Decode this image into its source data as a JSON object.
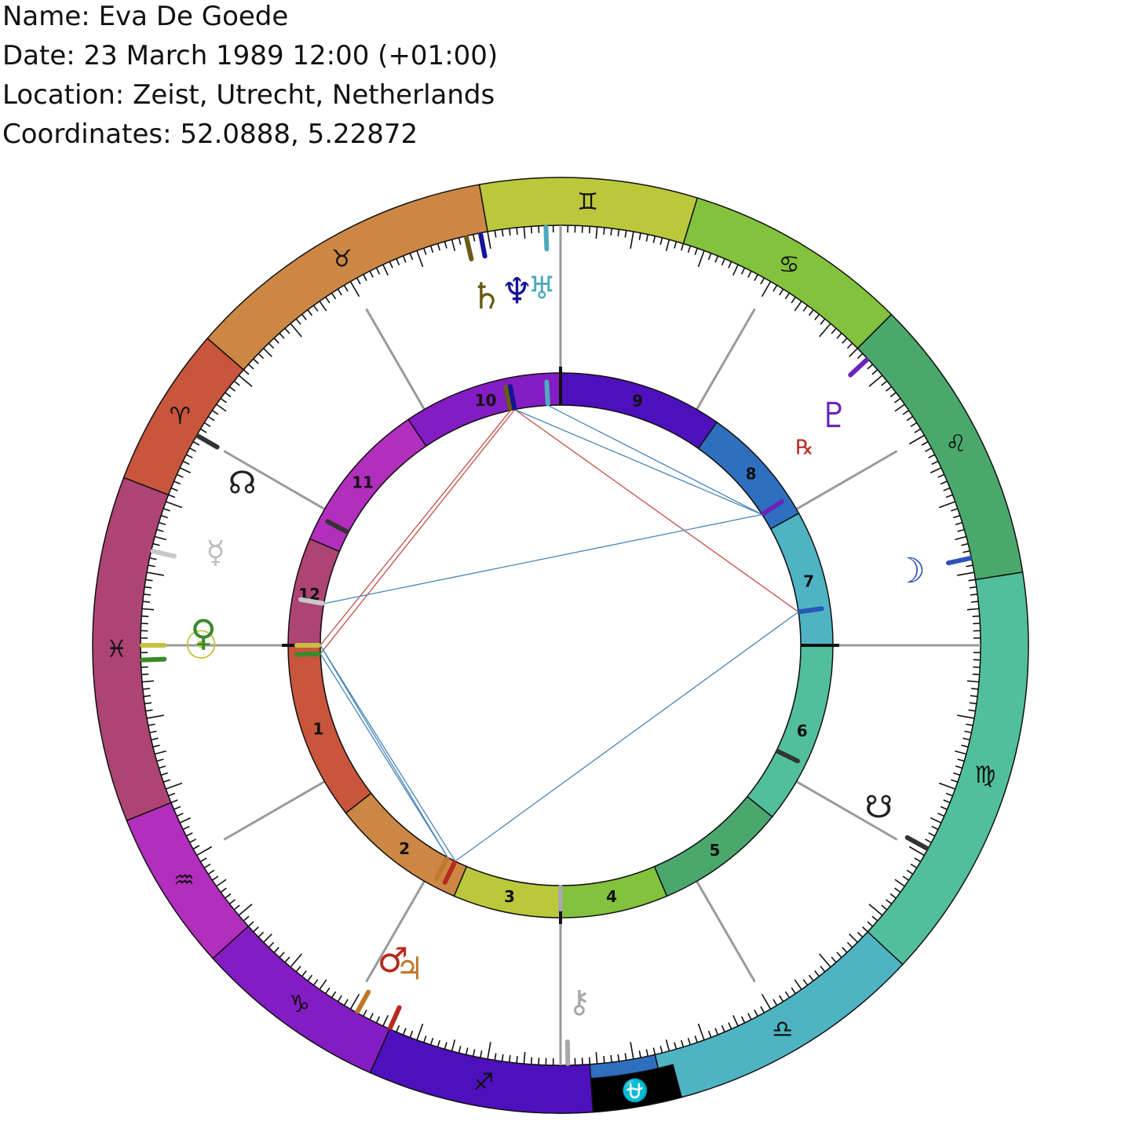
{
  "header": {
    "name": "Name: Eva De Goede",
    "date": "Date: 23 March 1989 12:00 (+01:00)",
    "location": "Location: Zeist, Utrecht, Netherlands",
    "coordinates": "Coordinates: 52.0888, 5.22872"
  },
  "zodiac": [
    {
      "name": "scorpio",
      "glyph": "♏",
      "start": 77,
      "end": 103,
      "color": "#2f6fbf"
    },
    {
      "name": "libra",
      "glyph": "♎",
      "start": 103,
      "end": 137,
      "color": "#4eb4c4"
    },
    {
      "name": "virgo",
      "glyph": "♍",
      "start": 137,
      "end": 189,
      "color": "#52bf9c"
    },
    {
      "name": "leo",
      "glyph": "♌",
      "start": 189,
      "end": 225,
      "color": "#4ba86c"
    },
    {
      "name": "cancer",
      "glyph": "♋",
      "start": 225,
      "end": 253,
      "color": "#82c23c"
    },
    {
      "name": "gemini",
      "glyph": "♊",
      "start": 253,
      "end": 280,
      "color": "#bcc83c"
    },
    {
      "name": "taurus",
      "glyph": "♉",
      "start": 280,
      "end": 319,
      "color": "#cc8744"
    },
    {
      "name": "aries",
      "glyph": "♈",
      "start": 319,
      "end": 339,
      "color": "#c8553c"
    },
    {
      "name": "pisces",
      "glyph": "♓",
      "start": 339,
      "end": 22,
      "color": "#ad4474"
    },
    {
      "name": "aquarius",
      "glyph": "♒",
      "start": 22,
      "end": 42,
      "color": "#b22ebc"
    },
    {
      "name": "capricorn",
      "glyph": "♑",
      "start": 42,
      "end": 66,
      "color": "#841cc4"
    },
    {
      "name": "sagittarius",
      "glyph": "♐",
      "start": 66,
      "end": 94,
      "color": "#4e10bc"
    }
  ],
  "ophiuchus": {
    "glyph": "⛎",
    "start": 94,
    "end": 105,
    "color": "#000000"
  },
  "houses": [
    {
      "num": "1",
      "start": 0,
      "end": 38,
      "color": "#c8553c"
    },
    {
      "num": "2",
      "start": 38,
      "end": 67,
      "color": "#cc8744"
    },
    {
      "num": "3",
      "start": 67,
      "end": 90,
      "color": "#bcc83c"
    },
    {
      "num": "4",
      "start": 90,
      "end": 113,
      "color": "#82c23c"
    },
    {
      "num": "5",
      "start": 113,
      "end": 141,
      "color": "#4ba86c"
    },
    {
      "num": "6",
      "start": 141,
      "end": 180,
      "color": "#52bf9c"
    },
    {
      "num": "7",
      "start": 180,
      "end": 209,
      "color": "#4eb4c4"
    },
    {
      "num": "8",
      "start": 209,
      "end": 235,
      "color": "#2f6fbf"
    },
    {
      "num": "9",
      "start": 235,
      "end": 270,
      "color": "#4e10bc"
    },
    {
      "num": "10",
      "start": 270,
      "end": 304,
      "color": "#841cc4"
    },
    {
      "num": "11",
      "start": 304,
      "end": 337,
      "color": "#b22ebc"
    },
    {
      "num": "12",
      "start": 337,
      "end": 360,
      "color": "#ad4474"
    }
  ],
  "cusp_lines": [
    0,
    30,
    60,
    90,
    120,
    150,
    180,
    210,
    240,
    270,
    300,
    330
  ],
  "planets": [
    {
      "name": "sun",
      "glyph": "☉",
      "lon": 0,
      "color": "#c8c040",
      "size": 50
    },
    {
      "name": "venus",
      "glyph": "♀",
      "lon": 358,
      "color": "#3a8a2a",
      "size": 46
    },
    {
      "name": "mercury",
      "glyph": "☿",
      "lon": 345,
      "color": "#bdbdbd",
      "size": 40
    },
    {
      "name": "north-node",
      "glyph": "☊",
      "lon": 333,
      "color": "#222222",
      "size": 40
    },
    {
      "name": "saturn",
      "glyph": "♄",
      "lon": 282,
      "color": "#6b5a14",
      "size": 46
    },
    {
      "name": "neptune",
      "glyph": "♆",
      "lon": 277,
      "color": "#141496",
      "size": 46
    },
    {
      "name": "uranus",
      "glyph": "♅",
      "lon": 273,
      "color": "#4eaabe",
      "size": 40
    },
    {
      "name": "pluto",
      "glyph": "♇",
      "lon": 220,
      "color": "#6a24b8",
      "size": 44
    },
    {
      "name": "moon",
      "glyph": "☽",
      "lon": 192,
      "color": "#2a54b8",
      "size": 44
    },
    {
      "name": "south-node",
      "glyph": "☋",
      "lon": 153,
      "color": "#222222",
      "size": 40
    },
    {
      "name": "chiron",
      "glyph": "⚷",
      "lon": 93,
      "color": "#a8a8a8",
      "size": 40
    },
    {
      "name": "mars",
      "glyph": "♂",
      "lon": 62,
      "color": "#b82a1e",
      "size": 44
    },
    {
      "name": "jupiter",
      "glyph": "♃",
      "lon": 65,
      "color": "#c0782a",
      "size": 40
    }
  ],
  "retrograde": {
    "glyph": "℞",
    "lon": 219,
    "color": "#b82a1e"
  },
  "outer_markers": [
    {
      "lon": 0,
      "color": "#c8c040"
    },
    {
      "lon": 2,
      "color": "#3a8a2a"
    },
    {
      "lon": 347,
      "color": "#c8c8c8"
    },
    {
      "lon": 330,
      "color": "#333333"
    },
    {
      "lon": 283,
      "color": "#6b5a14"
    },
    {
      "lon": 281,
      "color": "#141496"
    },
    {
      "lon": 272,
      "color": "#4eaabe"
    },
    {
      "lon": 223,
      "color": "#6a24b8"
    },
    {
      "lon": 192,
      "color": "#2a54b8"
    },
    {
      "lon": 151,
      "color": "#333333"
    },
    {
      "lon": 91,
      "color": "#a8a8a8"
    },
    {
      "lon": 66,
      "color": "#b82a1e"
    },
    {
      "lon": 61,
      "color": "#c0782a"
    }
  ],
  "inner_markers": [
    {
      "lon": 0,
      "color": "#c8c040"
    },
    {
      "lon": 2,
      "color": "#3a8a2a"
    },
    {
      "lon": 350,
      "color": "#c8c8c8"
    },
    {
      "lon": 332,
      "color": "#333333"
    },
    {
      "lon": 282,
      "color": "#6b5a14"
    },
    {
      "lon": 281,
      "color": "#141496"
    },
    {
      "lon": 273,
      "color": "#4eaabe"
    },
    {
      "lon": 213,
      "color": "#6a24b8"
    },
    {
      "lon": 188,
      "color": "#2a54b8"
    },
    {
      "lon": 154,
      "color": "#333333"
    },
    {
      "lon": 90,
      "color": "#a8a8a8"
    },
    {
      "lon": 64,
      "color": "#b82a1e"
    },
    {
      "lon": 62,
      "color": "#c0782a"
    }
  ],
  "aspects": [
    {
      "from": 0,
      "to": 282,
      "color": "#c0504a"
    },
    {
      "from": 2,
      "to": 281,
      "color": "#c0504a"
    },
    {
      "from": 281,
      "to": 188,
      "color": "#c0504a"
    },
    {
      "from": 281,
      "to": 213,
      "color": "#4a86b8"
    },
    {
      "from": 273,
      "to": 213,
      "color": "#4a86b8"
    },
    {
      "from": 350,
      "to": 213,
      "color": "#4a86b8"
    },
    {
      "from": 0,
      "to": 64,
      "color": "#4a86b8"
    },
    {
      "from": 2,
      "to": 62,
      "color": "#4a86b8"
    },
    {
      "from": 0,
      "to": 62,
      "color": "#4a86b8"
    },
    {
      "from": 64,
      "to": 188,
      "color": "#4a86b8"
    }
  ]
}
